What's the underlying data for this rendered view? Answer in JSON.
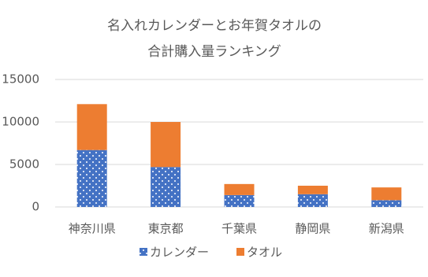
{
  "chart_data": {
    "type": "stacked_bar",
    "title": [
      "名入れカレンダーとお年賀タオルの",
      "合計購入量ランキング"
    ],
    "categories": [
      "神奈川県",
      "東京都",
      "千葉県",
      "静岡県",
      "新潟県"
    ],
    "series": [
      {
        "name": "カレンダー",
        "color": "#4472c4",
        "values": [
          6700,
          4700,
          1400,
          1500,
          800
        ]
      },
      {
        "name": "タオル",
        "color": "#ed7d31",
        "values": [
          5400,
          5300,
          1300,
          1000,
          1500
        ]
      }
    ],
    "ylim": [
      0,
      15000
    ],
    "yticks": [
      0,
      5000,
      10000,
      15000
    ],
    "grid": true,
    "legend": "bottom"
  }
}
